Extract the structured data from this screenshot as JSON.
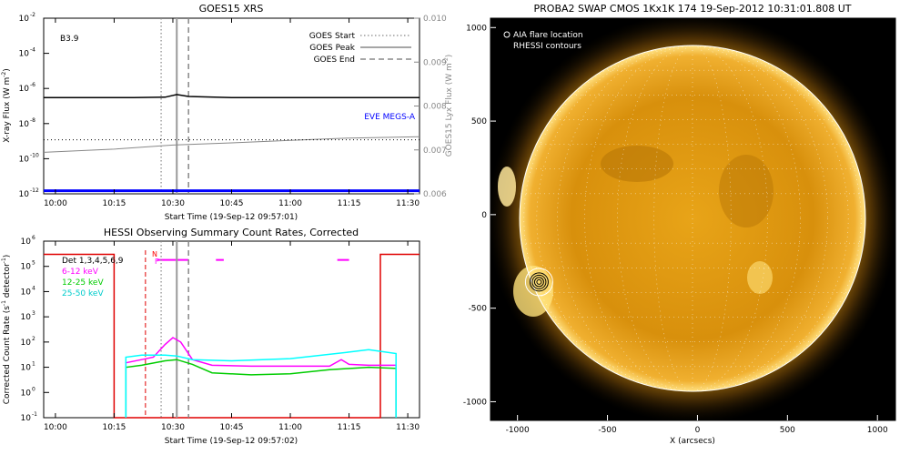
{
  "chart_data": [
    {
      "type": "line",
      "title": "GOES15 XRS",
      "xlabel": "Start Time (19-Sep-12 09:57:01)",
      "ylabel": "X-ray Flux (W m^-2)",
      "ylabel_main": "X-ray Flux (W m",
      "ylabel_sup": "-2",
      "ylabel_close": ")",
      "y2label": "GOES15 Lyx Flux (W m^-2)",
      "y2label_main": "GOES15 Lyx Flux (W m",
      "y2label_sup": "-2",
      "y2label_close": ")",
      "xlim": [
        "09:57",
        "11:33"
      ],
      "ylim": [
        1e-12,
        0.01
      ],
      "yscale": "log",
      "y2lim": [
        0.006,
        0.01
      ],
      "x_ticks": [
        "10:00",
        "10:15",
        "10:30",
        "10:45",
        "11:00",
        "11:15",
        "11:30"
      ],
      "y_ticks": [
        "10",
        "10",
        "10",
        "10",
        "10",
        "10"
      ],
      "y_tick_exponents": [
        "-12",
        "-10",
        "-8",
        "-6",
        "-4",
        "-2"
      ],
      "y2_ticks": [
        "0.006",
        "0.007",
        "0.008",
        "0.009",
        "0.010"
      ],
      "class_label": "B3.9",
      "annotation": "EVE MEGS-A",
      "legend": [
        "GOES Start",
        "GOES Peak",
        "GOES End"
      ],
      "legend_position": "top-right",
      "event_lines": {
        "start": "10:27",
        "peak": "10:31",
        "end": "10:34"
      },
      "series": [
        {
          "name": "",
          "color": "#000000",
          "x": [
            "09:57",
            "10:10",
            "10:20",
            "10:28",
            "10:31",
            "10:34",
            "10:45",
            "11:00",
            "11:15",
            "11:33"
          ],
          "y": [
            3e-07,
            3e-07,
            3e-07,
            3.2e-07,
            4.5e-07,
            3.5e-07,
            3e-07,
            3e-07,
            3e-07,
            3e-07
          ]
        },
        {
          "name": "",
          "color": "#888888",
          "x": [
            "09:57",
            "10:15",
            "10:30",
            "10:45",
            "11:00",
            "11:15",
            "11:33"
          ],
          "y": [
            2.3e-10,
            3.5e-10,
            6e-10,
            8e-10,
            1.1e-09,
            1.5e-09,
            1.8e-09
          ]
        },
        {
          "name": "EVE MEGS-A",
          "color": "#0000ff",
          "x": [
            "09:57",
            "11:33"
          ],
          "y": [
            1.5e-12,
            1.5e-12
          ]
        }
      ]
    },
    {
      "type": "line",
      "title": "HESSI Observing Summary Count Rates, Corrected",
      "xlabel": "Start Time (19-Sep-12 09:57:02)",
      "ylabel": "Corrected Count Rate (s^-1 detector^-1)",
      "ylabel_main": "Corrected Count Rate (s",
      "ylabel_sup1": "-1",
      "ylabel_mid": " detector",
      "ylabel_sup2": "-1",
      "ylabel_close": ")",
      "xlim": [
        "09:57",
        "11:33"
      ],
      "ylim": [
        0.1,
        1000000.0
      ],
      "yscale": "log",
      "x_ticks": [
        "10:00",
        "10:15",
        "10:30",
        "10:45",
        "11:00",
        "11:15",
        "11:30"
      ],
      "y_ticks": [
        "10",
        "10",
        "10",
        "10",
        "10",
        "10",
        "10",
        "10"
      ],
      "y_tick_exponents": [
        "-1",
        "0",
        "1",
        "2",
        "3",
        "4",
        "5",
        "6"
      ],
      "flag_labels": [
        "N",
        "F"
      ],
      "legend_position": "top-left",
      "legend": [
        {
          "name": "Det 1,3,4,5,6,9",
          "color": "#000000"
        },
        {
          "name": "6-12 keV",
          "color": "#ff00ff"
        },
        {
          "name": "12-25 keV",
          "color": "#00cc00"
        },
        {
          "name": "25-50 keV",
          "color": "#00ffff"
        }
      ],
      "series": [
        {
          "name": "6-12 keV",
          "color": "#ff00ff",
          "x": [
            "10:18",
            "10:22",
            "10:25",
            "10:28",
            "10:30",
            "10:32",
            "10:35",
            "10:40",
            "10:50",
            "11:00",
            "11:10",
            "11:13",
            "11:15",
            "11:20",
            "11:27"
          ],
          "y": [
            15,
            20,
            25,
            80,
            150,
            100,
            20,
            12,
            11,
            11,
            11,
            20,
            13,
            12,
            12
          ]
        },
        {
          "name": "12-25 keV",
          "color": "#00cc00",
          "x": [
            "10:18",
            "10:22",
            "10:28",
            "10:31",
            "10:35",
            "10:40",
            "10:50",
            "11:00",
            "11:10",
            "11:20",
            "11:27"
          ],
          "y": [
            10,
            12,
            18,
            20,
            13,
            6,
            5,
            5.5,
            8,
            10,
            9
          ]
        },
        {
          "name": "25-50 keV",
          "color": "#00ffff",
          "x": [
            "10:18",
            "10:22",
            "10:28",
            "10:31",
            "10:35",
            "10:45",
            "11:00",
            "11:15",
            "11:20",
            "11:27"
          ],
          "y": [
            25,
            30,
            30,
            28,
            20,
            18,
            22,
            40,
            50,
            35
          ]
        }
      ]
    },
    {
      "type": "scatter",
      "title": "PROBA2 SWAP CMOS 1Kx1K 174 19-Sep-2012 10:31:01.808 UT",
      "xlabel": "X (arcsecs)",
      "ylabel": "",
      "xlim": [
        -1150,
        1100
      ],
      "ylim": [
        -1100,
        1050
      ],
      "x_ticks": [
        "-1000",
        "-500",
        "0",
        "500",
        "1000"
      ],
      "y_ticks": [
        "1000",
        "500",
        "0",
        "-500",
        "-1000"
      ],
      "legend": [
        "AIA flare location",
        "RHESSI contours"
      ],
      "legend_position": "top-left",
      "flare_location": {
        "x": -880,
        "y": -360
      }
    }
  ]
}
